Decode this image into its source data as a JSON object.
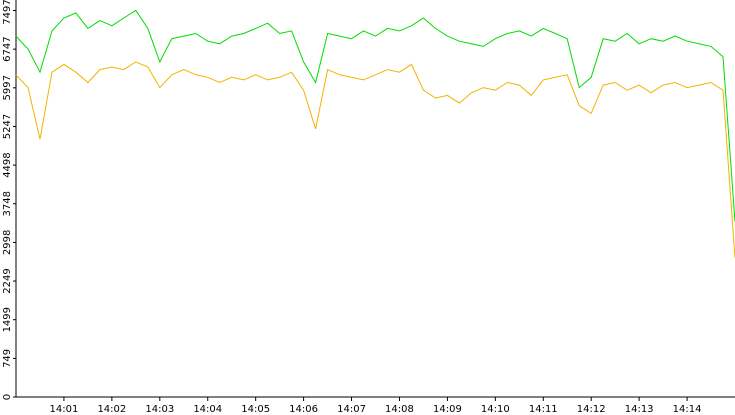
{
  "chart_data": {
    "type": "line",
    "x": [
      0,
      0.25,
      0.5,
      0.75,
      1,
      1.25,
      1.5,
      1.75,
      2,
      2.25,
      2.5,
      2.75,
      3,
      3.25,
      3.5,
      3.75,
      4,
      4.25,
      4.5,
      4.75,
      5,
      5.25,
      5.5,
      5.75,
      6,
      6.25,
      6.5,
      6.75,
      7,
      7.25,
      7.5,
      7.75,
      8,
      8.25,
      8.5,
      8.75,
      9,
      9.25,
      9.5,
      9.75,
      10,
      10.25,
      10.5,
      10.75,
      11,
      11.25,
      11.5,
      11.75,
      12,
      12.25,
      12.5,
      12.75,
      13,
      13.25,
      13.5,
      13.75,
      14,
      14.25,
      14.5,
      14.75,
      15
    ],
    "series": [
      {
        "color": "#00dd00",
        "values": [
          7000,
          6750,
          6300,
          7100,
          7350,
          7450,
          7150,
          7300,
          7200,
          7350,
          7500,
          7150,
          6500,
          6950,
          7000,
          7050,
          6900,
          6850,
          7000,
          7050,
          7150,
          7250,
          7050,
          7100,
          6500,
          6100,
          7050,
          7000,
          6950,
          7100,
          7000,
          7150,
          7100,
          7200,
          7350,
          7150,
          7000,
          6900,
          6850,
          6800,
          6950,
          7050,
          7100,
          7000,
          7150,
          7050,
          6950,
          6000,
          6200,
          6950,
          6900,
          7050,
          6850,
          6950,
          6900,
          7000,
          6900,
          6850,
          6800,
          6600,
          3400
        ]
      },
      {
        "color": "#f0b400",
        "values": [
          6250,
          6000,
          5000,
          6300,
          6450,
          6300,
          6100,
          6350,
          6400,
          6350,
          6500,
          6400,
          6000,
          6250,
          6350,
          6250,
          6200,
          6100,
          6200,
          6150,
          6250,
          6150,
          6200,
          6300,
          5950,
          5200,
          6350,
          6250,
          6200,
          6150,
          6250,
          6350,
          6300,
          6450,
          5950,
          5800,
          5850,
          5700,
          5900,
          6000,
          5950,
          6100,
          6050,
          5850,
          6150,
          6200,
          6250,
          5650,
          5500,
          6050,
          6100,
          5950,
          6050,
          5900,
          6050,
          6100,
          6000,
          6050,
          6100,
          5950,
          2700
        ]
      }
    ],
    "xlim": [
      0,
      15
    ],
    "xticks": [
      {
        "value": 1,
        "label": "14:01"
      },
      {
        "value": 2,
        "label": "14:02"
      },
      {
        "value": 3,
        "label": "14:03"
      },
      {
        "value": 4,
        "label": "14:04"
      },
      {
        "value": 5,
        "label": "14:05"
      },
      {
        "value": 6,
        "label": "14:06"
      },
      {
        "value": 7,
        "label": "14:07"
      },
      {
        "value": 8,
        "label": "14:08"
      },
      {
        "value": 9,
        "label": "14:09"
      },
      {
        "value": 10,
        "label": "14:10"
      },
      {
        "value": 11,
        "label": "14:11"
      },
      {
        "value": 12,
        "label": "14:12"
      },
      {
        "value": 13,
        "label": "14:13"
      },
      {
        "value": 14,
        "label": "14:14"
      }
    ],
    "ylim": [
      0,
      7700
    ],
    "yticks": [
      0,
      749,
      1499,
      2249,
      2998,
      3748,
      4498,
      5247,
      5997,
      6747,
      7497
    ]
  }
}
